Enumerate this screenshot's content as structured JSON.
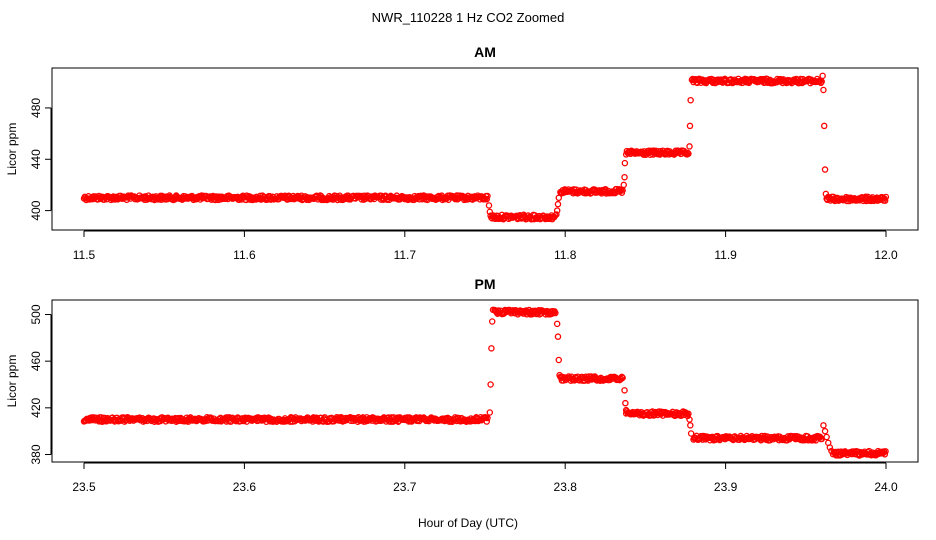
{
  "figure": {
    "title": "NWR_110228  1 Hz CO2 Zoomed",
    "xlabel": "Hour of Day (UTC)"
  },
  "chart_data": [
    {
      "type": "scatter",
      "title": "AM",
      "ylabel": "Licor ppm",
      "xlim": [
        11.5,
        12.0
      ],
      "ylim": [
        388,
        508
      ],
      "x_ticks": [
        "11.5",
        "11.6",
        "11.7",
        "11.8",
        "11.9",
        "12.0"
      ],
      "y_ticks": [
        "400",
        "440",
        "480"
      ],
      "marker": "open-circle",
      "color": "#ff0000",
      "segments": [
        {
          "x_start": 11.5,
          "x_end": 11.752,
          "y": 410
        },
        {
          "x_start": 11.754,
          "x_end": 11.794,
          "y": 395
        },
        {
          "x_start": 11.797,
          "x_end": 11.836,
          "y": 415
        },
        {
          "x_start": 11.838,
          "x_end": 11.877,
          "y": 445
        },
        {
          "x_start": 11.879,
          "x_end": 11.96,
          "y": 501
        },
        {
          "x_start": 11.963,
          "x_end": 12.0,
          "y": 409
        }
      ],
      "transitions": [
        {
          "x": 11.7525,
          "y": 404
        },
        {
          "x": 11.753,
          "y": 399
        },
        {
          "x": 11.7535,
          "y": 396
        },
        {
          "x": 11.7945,
          "y": 397
        },
        {
          "x": 11.795,
          "y": 400
        },
        {
          "x": 11.7955,
          "y": 405
        },
        {
          "x": 11.796,
          "y": 410
        },
        {
          "x": 11.8365,
          "y": 420
        },
        {
          "x": 11.837,
          "y": 426
        },
        {
          "x": 11.8372,
          "y": 437
        },
        {
          "x": 11.8775,
          "y": 450
        },
        {
          "x": 11.8778,
          "y": 466
        },
        {
          "x": 11.8782,
          "y": 486
        },
        {
          "x": 11.9605,
          "y": 505
        },
        {
          "x": 11.961,
          "y": 494
        },
        {
          "x": 11.9615,
          "y": 466
        },
        {
          "x": 11.962,
          "y": 432
        },
        {
          "x": 11.9625,
          "y": 413
        }
      ]
    },
    {
      "type": "scatter",
      "title": "PM",
      "ylabel": "Licor ppm",
      "xlim": [
        23.5,
        24.0
      ],
      "ylim": [
        377,
        509
      ],
      "x_ticks": [
        "23.5",
        "23.6",
        "23.7",
        "23.8",
        "23.9",
        "24.0"
      ],
      "y_ticks": [
        "380",
        "420",
        "460",
        "500"
      ],
      "marker": "open-circle",
      "color": "#ff0000",
      "segments": [
        {
          "x_start": 23.5,
          "x_end": 23.752,
          "y": 410
        },
        {
          "x_start": 23.756,
          "x_end": 23.794,
          "y": 502
        },
        {
          "x_start": 23.797,
          "x_end": 23.836,
          "y": 445
        },
        {
          "x_start": 23.838,
          "x_end": 23.877,
          "y": 415
        },
        {
          "x_start": 23.88,
          "x_end": 23.96,
          "y": 394
        },
        {
          "x_start": 23.967,
          "x_end": 24.0,
          "y": 381
        }
      ],
      "transitions": [
        {
          "x": 23.753,
          "y": 416
        },
        {
          "x": 23.7535,
          "y": 440
        },
        {
          "x": 23.754,
          "y": 471
        },
        {
          "x": 23.7545,
          "y": 494
        },
        {
          "x": 23.755,
          "y": 504
        },
        {
          "x": 23.795,
          "y": 492
        },
        {
          "x": 23.7955,
          "y": 481
        },
        {
          "x": 23.796,
          "y": 461
        },
        {
          "x": 23.7965,
          "y": 448
        },
        {
          "x": 23.837,
          "y": 435
        },
        {
          "x": 23.8375,
          "y": 424
        },
        {
          "x": 23.838,
          "y": 418
        },
        {
          "x": 23.8775,
          "y": 410
        },
        {
          "x": 23.878,
          "y": 405
        },
        {
          "x": 23.8785,
          "y": 398
        },
        {
          "x": 23.961,
          "y": 405
        },
        {
          "x": 23.962,
          "y": 400
        },
        {
          "x": 23.963,
          "y": 395
        },
        {
          "x": 23.964,
          "y": 390
        },
        {
          "x": 23.965,
          "y": 386
        },
        {
          "x": 23.966,
          "y": 383
        }
      ]
    }
  ]
}
